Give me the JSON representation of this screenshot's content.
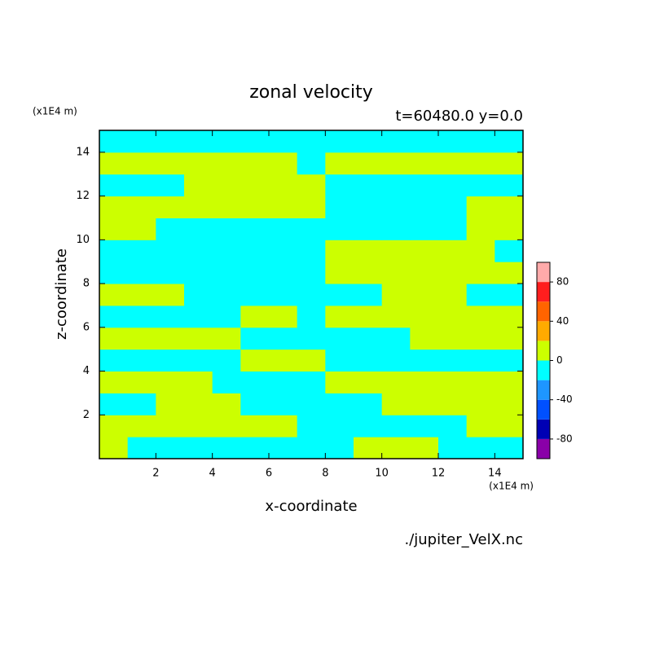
{
  "chart_data": {
    "type": "contour",
    "title": "zonal velocity",
    "subtitle": "t=60480.0 y=0.0",
    "x_label": "x-coordinate",
    "y_label": "z-coordinate",
    "x_units": "(x1E4 m)",
    "y_units": "(x1E4 m)",
    "source": "./jupiter_VelX.nc",
    "xlim": [
      0,
      15
    ],
    "ylim": [
      0,
      15
    ],
    "xticks": [
      2,
      4,
      6,
      8,
      10,
      12,
      14
    ],
    "yticks": [
      2,
      4,
      6,
      8,
      10,
      12,
      14
    ],
    "x": [
      0.5,
      1.5,
      2.5,
      3.5,
      4.5,
      5.5,
      6.5,
      7.5,
      8.5,
      9.5,
      10.5,
      11.5,
      12.5,
      13.5,
      14.5
    ],
    "y": [
      0.5,
      1.5,
      2.5,
      3.5,
      4.5,
      5.5,
      6.5,
      7.5,
      8.5,
      9.5,
      10.5,
      11.5,
      12.5,
      13.5,
      14.5
    ],
    "z": [
      [
        8,
        -8,
        -8,
        -8,
        -8,
        -8,
        -8,
        -8,
        -8,
        8,
        8,
        8,
        -8,
        -8,
        -8
      ],
      [
        8,
        8,
        8,
        8,
        8,
        8,
        8,
        -8,
        -8,
        -8,
        -8,
        -8,
        -8,
        8,
        8
      ],
      [
        -8,
        -8,
        8,
        8,
        8,
        -8,
        -8,
        -8,
        -8,
        -8,
        8,
        8,
        8,
        8,
        8
      ],
      [
        8,
        8,
        8,
        8,
        -8,
        -8,
        -8,
        -8,
        8,
        8,
        8,
        8,
        8,
        8,
        8
      ],
      [
        -8,
        -8,
        -8,
        -8,
        -8,
        8,
        8,
        8,
        -8,
        -8,
        -8,
        -8,
        -8,
        -8,
        -8
      ],
      [
        8,
        8,
        8,
        8,
        8,
        -8,
        -8,
        -8,
        -8,
        -8,
        -8,
        8,
        8,
        8,
        8
      ],
      [
        -8,
        -8,
        -8,
        -8,
        -8,
        8,
        8,
        -8,
        8,
        8,
        8,
        8,
        8,
        8,
        8
      ],
      [
        8,
        8,
        8,
        -8,
        -8,
        -8,
        -8,
        -8,
        -8,
        -8,
        8,
        8,
        8,
        -8,
        -8
      ],
      [
        -8,
        -8,
        -8,
        -8,
        -8,
        -8,
        -8,
        -8,
        8,
        8,
        8,
        8,
        8,
        8,
        8
      ],
      [
        -8,
        -8,
        -8,
        -8,
        -8,
        -8,
        -8,
        -8,
        8,
        8,
        8,
        8,
        8,
        8,
        -8
      ],
      [
        8,
        8,
        -8,
        -8,
        -8,
        -8,
        -8,
        -8,
        -8,
        -8,
        -8,
        -8,
        -8,
        8,
        8
      ],
      [
        8,
        8,
        8,
        8,
        8,
        8,
        8,
        8,
        -8,
        -8,
        -8,
        -8,
        -8,
        8,
        8
      ],
      [
        -8,
        -8,
        -8,
        8,
        8,
        8,
        8,
        8,
        -8,
        -8,
        -8,
        -8,
        -8,
        -8,
        -8
      ],
      [
        8,
        8,
        8,
        8,
        8,
        8,
        8,
        -8,
        8,
        8,
        8,
        8,
        8,
        8,
        8
      ],
      [
        -8,
        -8,
        -8,
        -8,
        -8,
        -8,
        -8,
        -8,
        -8,
        -8,
        -8,
        -8,
        -8,
        -8,
        -8
      ]
    ],
    "colorbar": {
      "levels": [
        -100,
        -80,
        -60,
        -40,
        -20,
        0,
        20,
        40,
        60,
        80,
        100
      ],
      "colors": [
        "#8a00a8",
        "#0000b4",
        "#0050ff",
        "#1e96ff",
        "#00ffff",
        "#ccff00",
        "#ffaa00",
        "#ff6400",
        "#ff1e1e",
        "#ffaaaa"
      ],
      "ticks": [
        -80,
        -40,
        0,
        40,
        80
      ]
    }
  }
}
